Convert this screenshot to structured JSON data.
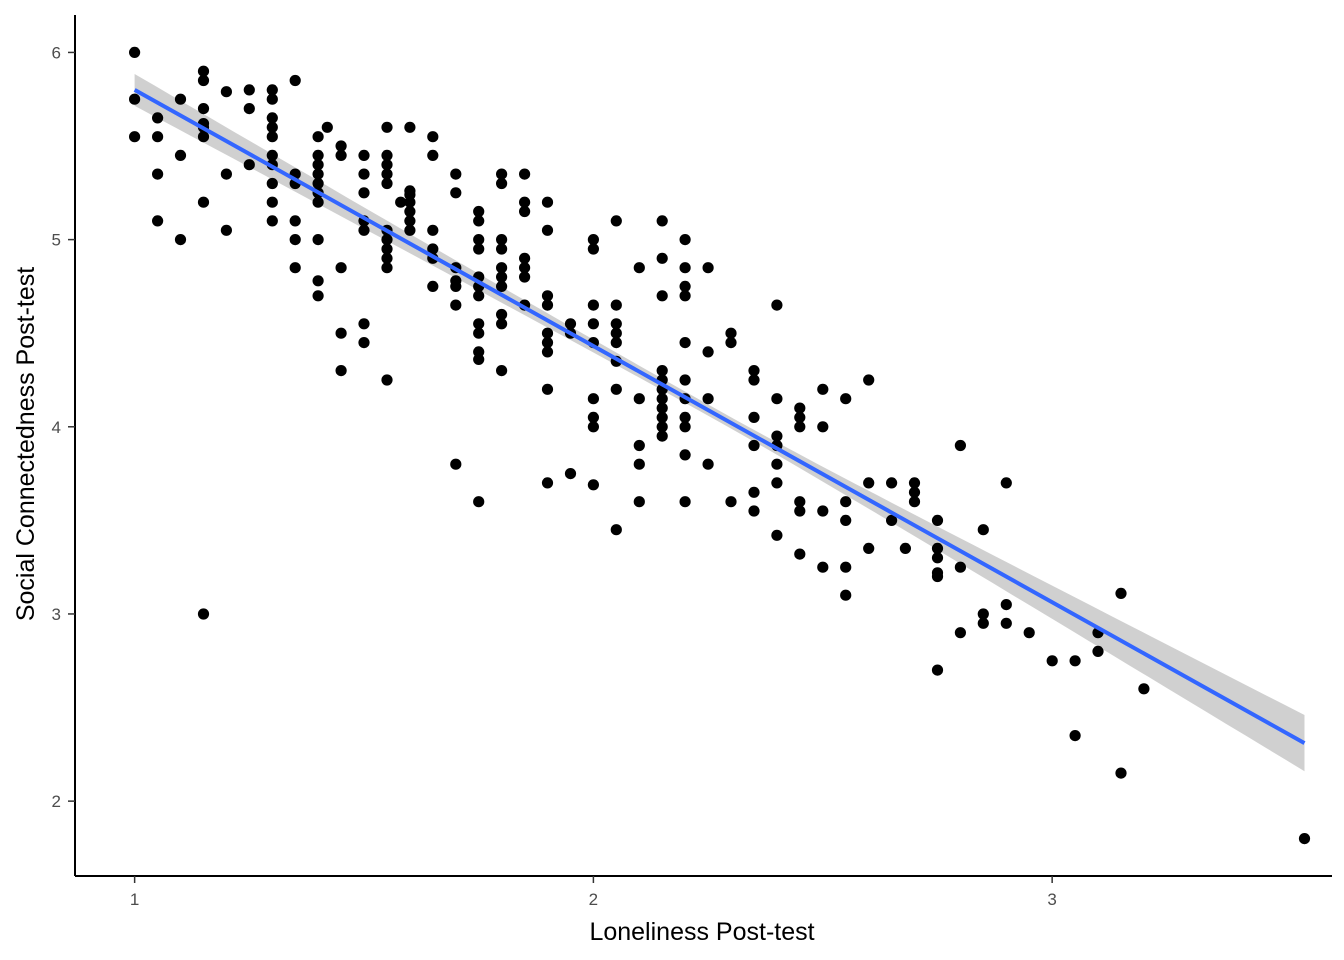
{
  "chart_data": {
    "type": "scatter",
    "title": "",
    "xlabel": "Loneliness Post-test",
    "ylabel": "Social Connectedness Post-test",
    "xlim": [
      0.87,
      3.61
    ],
    "ylim": [
      1.6,
      6.2
    ],
    "xticks": [
      "1",
      "2",
      "3"
    ],
    "yticks": [
      "2",
      "3",
      "4",
      "5",
      "6"
    ],
    "grid": false,
    "legend": "none",
    "colors": {
      "points": "#000000",
      "fit_line": "#3366ff",
      "confidence_band": "#c8c8c8",
      "axis": "#000000"
    },
    "fit": {
      "method": "linear",
      "x": [
        1.0,
        3.55
      ],
      "y": [
        5.8,
        2.31
      ],
      "ci_halfwidth_at_ends": [
        0.085,
        0.15
      ],
      "ci_halfwidth_at_center": 0.03
    },
    "points": [
      [
        1.0,
        6.0
      ],
      [
        1.0,
        5.75
      ],
      [
        1.0,
        5.55
      ],
      [
        1.05,
        5.65
      ],
      [
        1.05,
        5.55
      ],
      [
        1.05,
        5.35
      ],
      [
        1.05,
        5.1
      ],
      [
        1.1,
        5.75
      ],
      [
        1.1,
        5.45
      ],
      [
        1.1,
        5.0
      ],
      [
        1.15,
        5.9
      ],
      [
        1.15,
        5.85
      ],
      [
        1.15,
        5.7
      ],
      [
        1.15,
        5.62
      ],
      [
        1.15,
        5.6
      ],
      [
        1.15,
        5.55
      ],
      [
        1.15,
        5.2
      ],
      [
        1.15,
        3.0
      ],
      [
        1.2,
        5.79
      ],
      [
        1.2,
        5.35
      ],
      [
        1.2,
        5.05
      ],
      [
        1.25,
        5.8
      ],
      [
        1.25,
        5.7
      ],
      [
        1.25,
        5.4
      ],
      [
        1.3,
        5.8
      ],
      [
        1.3,
        5.75
      ],
      [
        1.3,
        5.65
      ],
      [
        1.3,
        5.6
      ],
      [
        1.3,
        5.55
      ],
      [
        1.3,
        5.45
      ],
      [
        1.3,
        5.4
      ],
      [
        1.3,
        5.3
      ],
      [
        1.3,
        5.2
      ],
      [
        1.3,
        5.1
      ],
      [
        1.35,
        5.85
      ],
      [
        1.35,
        5.35
      ],
      [
        1.35,
        5.3
      ],
      [
        1.35,
        5.1
      ],
      [
        1.35,
        5.0
      ],
      [
        1.35,
        4.85
      ],
      [
        1.4,
        5.55
      ],
      [
        1.4,
        5.45
      ],
      [
        1.4,
        5.4
      ],
      [
        1.4,
        5.35
      ],
      [
        1.4,
        5.3
      ],
      [
        1.4,
        5.25
      ],
      [
        1.4,
        5.2
      ],
      [
        1.4,
        5.0
      ],
      [
        1.4,
        4.78
      ],
      [
        1.4,
        4.7
      ],
      [
        1.42,
        5.6
      ],
      [
        1.45,
        5.5
      ],
      [
        1.45,
        5.45
      ],
      [
        1.45,
        4.85
      ],
      [
        1.45,
        4.5
      ],
      [
        1.45,
        4.3
      ],
      [
        1.5,
        5.45
      ],
      [
        1.5,
        5.35
      ],
      [
        1.5,
        5.25
      ],
      [
        1.5,
        5.1
      ],
      [
        1.5,
        5.05
      ],
      [
        1.5,
        4.55
      ],
      [
        1.5,
        4.45
      ],
      [
        1.55,
        5.6
      ],
      [
        1.55,
        5.45
      ],
      [
        1.55,
        5.4
      ],
      [
        1.55,
        5.35
      ],
      [
        1.55,
        5.3
      ],
      [
        1.55,
        5.05
      ],
      [
        1.55,
        5.0
      ],
      [
        1.55,
        4.95
      ],
      [
        1.55,
        4.9
      ],
      [
        1.55,
        4.85
      ],
      [
        1.55,
        4.25
      ],
      [
        1.58,
        5.2
      ],
      [
        1.6,
        5.6
      ],
      [
        1.6,
        5.26
      ],
      [
        1.6,
        5.24
      ],
      [
        1.6,
        5.2
      ],
      [
        1.6,
        5.15
      ],
      [
        1.6,
        5.1
      ],
      [
        1.6,
        5.05
      ],
      [
        1.65,
        5.55
      ],
      [
        1.65,
        5.45
      ],
      [
        1.65,
        5.05
      ],
      [
        1.65,
        4.95
      ],
      [
        1.65,
        4.9
      ],
      [
        1.65,
        4.75
      ],
      [
        1.7,
        5.35
      ],
      [
        1.7,
        5.25
      ],
      [
        1.7,
        4.85
      ],
      [
        1.7,
        4.78
      ],
      [
        1.7,
        4.75
      ],
      [
        1.7,
        4.65
      ],
      [
        1.7,
        3.8
      ],
      [
        1.75,
        5.15
      ],
      [
        1.75,
        5.1
      ],
      [
        1.75,
        5.0
      ],
      [
        1.75,
        4.95
      ],
      [
        1.75,
        4.8
      ],
      [
        1.75,
        4.75
      ],
      [
        1.75,
        4.7
      ],
      [
        1.75,
        4.55
      ],
      [
        1.75,
        4.5
      ],
      [
        1.75,
        4.4
      ],
      [
        1.75,
        4.36
      ],
      [
        1.75,
        3.6
      ],
      [
        1.8,
        5.35
      ],
      [
        1.8,
        5.3
      ],
      [
        1.8,
        5.0
      ],
      [
        1.8,
        4.95
      ],
      [
        1.8,
        4.85
      ],
      [
        1.8,
        4.8
      ],
      [
        1.8,
        4.75
      ],
      [
        1.8,
        4.6
      ],
      [
        1.8,
        4.55
      ],
      [
        1.8,
        4.3
      ],
      [
        1.85,
        5.35
      ],
      [
        1.85,
        5.2
      ],
      [
        1.85,
        5.15
      ],
      [
        1.85,
        4.9
      ],
      [
        1.85,
        4.85
      ],
      [
        1.85,
        4.8
      ],
      [
        1.85,
        4.65
      ],
      [
        1.9,
        5.2
      ],
      [
        1.9,
        5.05
      ],
      [
        1.9,
        4.7
      ],
      [
        1.9,
        4.65
      ],
      [
        1.9,
        4.5
      ],
      [
        1.9,
        4.45
      ],
      [
        1.9,
        4.4
      ],
      [
        1.9,
        4.2
      ],
      [
        1.9,
        3.7
      ],
      [
        1.95,
        4.55
      ],
      [
        1.95,
        4.5
      ],
      [
        1.95,
        3.75
      ],
      [
        2.0,
        5.0
      ],
      [
        2.0,
        4.95
      ],
      [
        2.0,
        4.65
      ],
      [
        2.0,
        4.55
      ],
      [
        2.0,
        4.45
      ],
      [
        2.0,
        4.15
      ],
      [
        2.0,
        4.05
      ],
      [
        2.0,
        4.0
      ],
      [
        2.0,
        3.69
      ],
      [
        2.05,
        5.1
      ],
      [
        2.05,
        4.65
      ],
      [
        2.05,
        4.55
      ],
      [
        2.05,
        4.5
      ],
      [
        2.05,
        4.45
      ],
      [
        2.05,
        4.35
      ],
      [
        2.05,
        4.2
      ],
      [
        2.05,
        3.45
      ],
      [
        2.1,
        4.85
      ],
      [
        2.1,
        4.15
      ],
      [
        2.1,
        3.9
      ],
      [
        2.1,
        3.8
      ],
      [
        2.1,
        3.6
      ],
      [
        2.15,
        5.1
      ],
      [
        2.15,
        4.9
      ],
      [
        2.15,
        4.7
      ],
      [
        2.15,
        4.3
      ],
      [
        2.15,
        4.25
      ],
      [
        2.15,
        4.2
      ],
      [
        2.15,
        4.15
      ],
      [
        2.15,
        4.1
      ],
      [
        2.15,
        4.05
      ],
      [
        2.15,
        4.0
      ],
      [
        2.15,
        3.95
      ],
      [
        2.2,
        5.0
      ],
      [
        2.2,
        4.85
      ],
      [
        2.2,
        4.75
      ],
      [
        2.2,
        4.7
      ],
      [
        2.2,
        4.45
      ],
      [
        2.2,
        4.25
      ],
      [
        2.2,
        4.15
      ],
      [
        2.2,
        4.05
      ],
      [
        2.2,
        4.0
      ],
      [
        2.2,
        3.85
      ],
      [
        2.2,
        3.6
      ],
      [
        2.25,
        4.85
      ],
      [
        2.25,
        4.4
      ],
      [
        2.25,
        4.15
      ],
      [
        2.25,
        3.8
      ],
      [
        2.3,
        4.5
      ],
      [
        2.3,
        4.45
      ],
      [
        2.3,
        3.6
      ],
      [
        2.35,
        4.3
      ],
      [
        2.35,
        4.25
      ],
      [
        2.35,
        4.05
      ],
      [
        2.35,
        3.9
      ],
      [
        2.35,
        3.65
      ],
      [
        2.35,
        3.55
      ],
      [
        2.4,
        4.65
      ],
      [
        2.4,
        4.15
      ],
      [
        2.4,
        3.95
      ],
      [
        2.4,
        3.9
      ],
      [
        2.4,
        3.8
      ],
      [
        2.4,
        3.7
      ],
      [
        2.4,
        3.42
      ],
      [
        2.45,
        4.1
      ],
      [
        2.45,
        4.05
      ],
      [
        2.45,
        4.0
      ],
      [
        2.45,
        3.6
      ],
      [
        2.45,
        3.55
      ],
      [
        2.45,
        3.32
      ],
      [
        2.5,
        4.2
      ],
      [
        2.5,
        4.0
      ],
      [
        2.5,
        3.55
      ],
      [
        2.5,
        3.25
      ],
      [
        2.55,
        4.15
      ],
      [
        2.55,
        3.6
      ],
      [
        2.55,
        3.5
      ],
      [
        2.55,
        3.25
      ],
      [
        2.55,
        3.1
      ],
      [
        2.6,
        4.25
      ],
      [
        2.6,
        3.7
      ],
      [
        2.6,
        3.35
      ],
      [
        2.65,
        3.7
      ],
      [
        2.65,
        3.5
      ],
      [
        2.68,
        3.35
      ],
      [
        2.7,
        3.7
      ],
      [
        2.7,
        3.65
      ],
      [
        2.7,
        3.6
      ],
      [
        2.75,
        3.5
      ],
      [
        2.75,
        3.35
      ],
      [
        2.75,
        3.3
      ],
      [
        2.75,
        3.22
      ],
      [
        2.75,
        3.2
      ],
      [
        2.75,
        2.7
      ],
      [
        2.8,
        3.9
      ],
      [
        2.8,
        3.25
      ],
      [
        2.8,
        2.9
      ],
      [
        2.85,
        3.45
      ],
      [
        2.85,
        3.0
      ],
      [
        2.85,
        2.95
      ],
      [
        2.9,
        3.7
      ],
      [
        2.9,
        3.05
      ],
      [
        2.9,
        2.95
      ],
      [
        2.95,
        2.9
      ],
      [
        3.0,
        2.75
      ],
      [
        3.05,
        2.75
      ],
      [
        3.05,
        2.35
      ],
      [
        3.1,
        2.9
      ],
      [
        3.1,
        2.8
      ],
      [
        3.15,
        3.11
      ],
      [
        3.15,
        2.15
      ],
      [
        3.2,
        2.6
      ],
      [
        3.55,
        1.8
      ]
    ]
  }
}
